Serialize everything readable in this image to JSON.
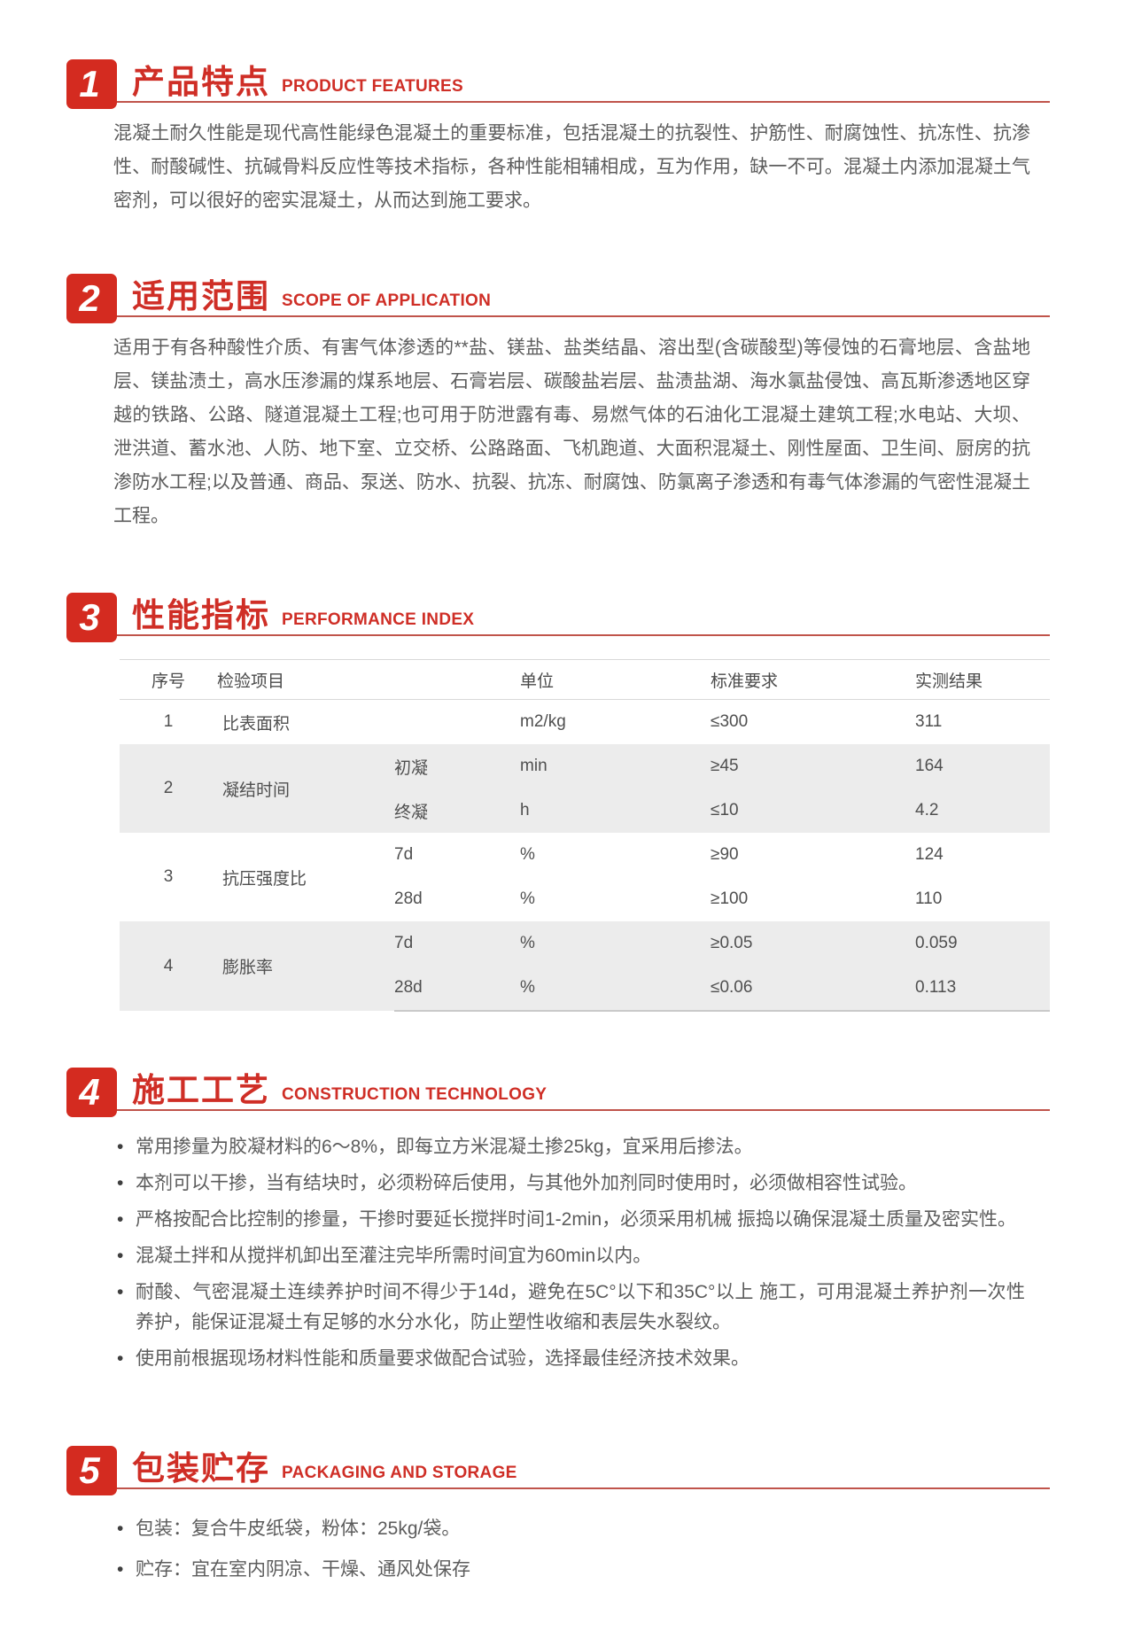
{
  "colors": {
    "badge_red": "#d42b20",
    "heading_red": "#cf2e26",
    "underline_red": "#c0544b",
    "table_stripe_gray": "#ececec",
    "body_text_gray": "#595959"
  },
  "sections": [
    {
      "num": "1",
      "title": "产品特点",
      "subtitle": "PRODUCT FEATURES",
      "paragraph": "混凝土耐久性能是现代高性能绿色混凝土的重要标准，包括混凝土的抗裂性、护筋性、耐腐蚀性、抗冻性、抗渗性、耐酸碱性、抗碱骨料反应性等技术指标，各种性能相辅相成，互为作用，缺一不可。混凝土内添加混凝土气密剂，可以很好的密实混凝土，从而达到施工要求。"
    },
    {
      "num": "2",
      "title": "适用范围",
      "subtitle": "SCOPE OF APPLICATION",
      "paragraph": "适用于有各种酸性介质、有害气体渗透的**盐、镁盐、盐类结晶、溶出型(含碳酸型)等侵蚀的石膏地层、含盐地层、镁盐渍土，高水压渗漏的煤系地层、石膏岩层、碳酸盐岩层、盐渍盐湖、海水氯盐侵蚀、高瓦斯渗透地区穿越的铁路、公路、隧道混凝土工程;也可用于防泄露有毒、易燃气体的石油化工混凝土建筑工程;水电站、大坝、泄洪道、蓄水池、人防、地下室、立交桥、公路路面、飞机跑道、大面积混凝土、刚性屋面、卫生间、厨房的抗渗防水工程;以及普通、商品、泵送、防水、抗裂、抗冻、耐腐蚀、防氯离子渗透和有毒气体渗漏的气密性混凝土工程。"
    },
    {
      "num": "3",
      "title": "性能指标",
      "subtitle": "PERFORMANCE INDEX"
    },
    {
      "num": "4",
      "title": "施工工艺",
      "subtitle": "CONSTRUCTION TECHNOLOGY",
      "bullets": [
        "常用掺量为胶凝材料的6～8%，即每立方米混凝土掺25kg，宜采用后掺法。",
        "本剂可以干掺，当有结块时，必须粉碎后使用，与其他外加剂同时使用时，必须做相容性试验。",
        "严格按配合比控制的掺量，干掺时要延长搅拌时间1-2min，必须采用机械 振捣以确保混凝土质量及密实性。",
        "混凝土拌和从搅拌机卸出至灌注完毕所需时间宜为60min以内。",
        "耐酸、气密混凝土连续养护时间不得少于14d，避免在5C°以下和35C°以上 施工，可用混凝土养护剂一次性养护，能保证混凝土有足够的水分水化，防止塑性收缩和表层失水裂纹。",
        "使用前根据现场材料性能和质量要求做配合试验，选择最佳经济技术效果。"
      ]
    },
    {
      "num": "5",
      "title": "包装贮存",
      "subtitle": "PACKAGING AND STORAGE",
      "bullets": [
        "包装：复合牛皮纸袋，粉体：25kg/袋。",
        "贮存：宜在室内阴凉、干燥、通风处保存"
      ]
    }
  ],
  "table": {
    "headers": [
      "序号",
      "检验项目",
      "单位",
      "标准要求",
      "实测结果"
    ],
    "rows": [
      {
        "no": "1",
        "item": "比表面积",
        "sub": "",
        "unit": "m2/kg",
        "standard": "≤300",
        "result": "311"
      },
      {
        "no": "2",
        "item": "凝结时间",
        "subs": [
          {
            "sub": "初凝",
            "unit": "min",
            "standard": "≥45",
            "result": "164"
          },
          {
            "sub": "终凝",
            "unit": "h",
            "standard": "≤10",
            "result": "4.2"
          }
        ]
      },
      {
        "no": "3",
        "item": "抗压强度比",
        "subs": [
          {
            "sub": "7d",
            "unit": "%",
            "standard": "≥90",
            "result": "124"
          },
          {
            "sub": "28d",
            "unit": "%",
            "standard": "≥100",
            "result": "110"
          }
        ]
      },
      {
        "no": "4",
        "item": "膨胀率",
        "subs": [
          {
            "sub": "7d",
            "unit": "%",
            "standard": "≥0.05",
            "result": "0.059"
          },
          {
            "sub": "28d",
            "unit": "%",
            "standard": "≤0.06",
            "result": "0.113"
          }
        ]
      }
    ]
  }
}
